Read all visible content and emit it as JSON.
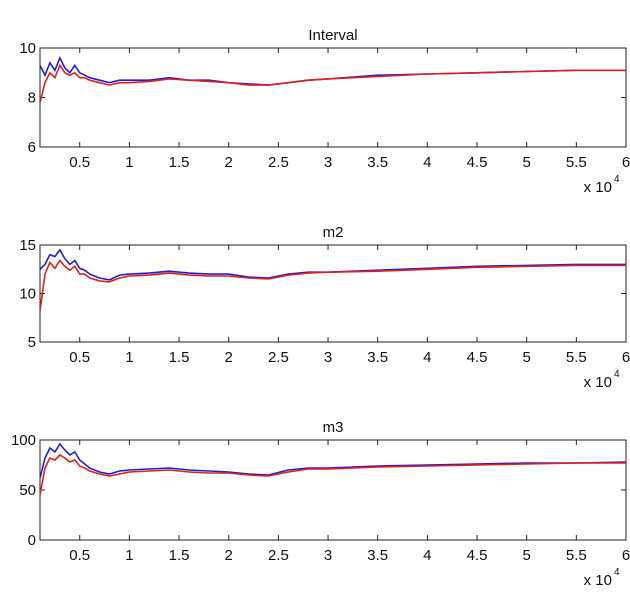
{
  "figure_bg": "#ffffff",
  "chart_data": [
    {
      "type": "line",
      "title": "Interval",
      "xlabel": "",
      "ylabel": "",
      "xlim": [
        1000,
        60000
      ],
      "ylim": [
        6,
        10
      ],
      "x_ticks": [
        5000,
        10000,
        15000,
        20000,
        25000,
        30000,
        35000,
        40000,
        45000,
        50000,
        55000,
        60000
      ],
      "x_tick_labels": [
        "0.5",
        "1",
        "1.5",
        "2",
        "2.5",
        "3",
        "3.5",
        "4",
        "4.5",
        "5",
        "5.5",
        "6"
      ],
      "x_exponent_label": {
        "base": "x 10",
        "power": "4"
      },
      "y_ticks": [
        6,
        8,
        10
      ],
      "y_tick_labels": [
        "6",
        "8",
        "10"
      ],
      "grid": false,
      "legend": "none",
      "series": [
        {
          "color": "#1f1fd6",
          "x": [
            1000,
            1500,
            2000,
            2500,
            3000,
            3500,
            4000,
            4500,
            5000,
            5500,
            6000,
            7000,
            8000,
            9000,
            10000,
            12000,
            14000,
            16000,
            18000,
            20000,
            22000,
            24000,
            26000,
            28000,
            30000,
            35000,
            40000,
            45000,
            50000,
            55000,
            60000
          ],
          "y": [
            9.3,
            8.9,
            9.4,
            9.1,
            9.6,
            9.2,
            9.0,
            9.3,
            9.0,
            8.9,
            8.8,
            8.7,
            8.6,
            8.7,
            8.7,
            8.7,
            8.8,
            8.7,
            8.7,
            8.6,
            8.55,
            8.5,
            8.6,
            8.7,
            8.75,
            8.9,
            8.95,
            9.0,
            9.05,
            9.1,
            9.1
          ]
        },
        {
          "color": "#e0201a",
          "x": [
            1000,
            1500,
            2000,
            2500,
            3000,
            3500,
            4000,
            4500,
            5000,
            5500,
            6000,
            7000,
            8000,
            9000,
            10000,
            12000,
            14000,
            16000,
            18000,
            20000,
            22000,
            24000,
            26000,
            28000,
            30000,
            35000,
            40000,
            45000,
            50000,
            55000,
            60000
          ],
          "y": [
            7.8,
            8.6,
            9.0,
            8.8,
            9.3,
            9.0,
            8.9,
            9.0,
            8.8,
            8.8,
            8.7,
            8.6,
            8.5,
            8.6,
            8.6,
            8.65,
            8.75,
            8.7,
            8.65,
            8.6,
            8.5,
            8.5,
            8.6,
            8.7,
            8.75,
            8.85,
            8.95,
            9.0,
            9.05,
            9.1,
            9.1
          ]
        }
      ]
    },
    {
      "type": "line",
      "title": "m2",
      "xlabel": "",
      "ylabel": "",
      "xlim": [
        1000,
        60000
      ],
      "ylim": [
        5,
        15
      ],
      "x_ticks": [
        5000,
        10000,
        15000,
        20000,
        25000,
        30000,
        35000,
        40000,
        45000,
        50000,
        55000,
        60000
      ],
      "x_tick_labels": [
        "0.5",
        "1",
        "1.5",
        "2",
        "2.5",
        "3",
        "3.5",
        "4",
        "4.5",
        "5",
        "5.5",
        "6"
      ],
      "x_exponent_label": {
        "base": "x 10",
        "power": "4"
      },
      "y_ticks": [
        5,
        10,
        15
      ],
      "y_tick_labels": [
        "5",
        "10",
        "15"
      ],
      "grid": false,
      "legend": "none",
      "series": [
        {
          "color": "#1f1fd6",
          "x": [
            1000,
            1500,
            2000,
            2500,
            3000,
            3500,
            4000,
            4500,
            5000,
            5500,
            6000,
            7000,
            8000,
            9000,
            10000,
            12000,
            14000,
            16000,
            18000,
            20000,
            22000,
            24000,
            26000,
            28000,
            30000,
            35000,
            40000,
            45000,
            50000,
            55000,
            60000
          ],
          "y": [
            12.5,
            13.0,
            14.0,
            13.8,
            14.5,
            13.6,
            13.0,
            13.4,
            12.6,
            12.4,
            12.0,
            11.6,
            11.4,
            11.9,
            12.0,
            12.1,
            12.3,
            12.1,
            12.0,
            12.0,
            11.7,
            11.6,
            12.0,
            12.2,
            12.2,
            12.4,
            12.6,
            12.8,
            12.9,
            13.0,
            13.0
          ]
        },
        {
          "color": "#e0201a",
          "x": [
            1000,
            1500,
            2000,
            2500,
            3000,
            3500,
            4000,
            4500,
            5000,
            5500,
            6000,
            7000,
            8000,
            9000,
            10000,
            12000,
            14000,
            16000,
            18000,
            20000,
            22000,
            24000,
            26000,
            28000,
            30000,
            35000,
            40000,
            45000,
            50000,
            55000,
            60000
          ],
          "y": [
            8.2,
            12.0,
            13.2,
            12.6,
            13.4,
            12.8,
            12.4,
            12.8,
            12.0,
            12.0,
            11.6,
            11.3,
            11.2,
            11.6,
            11.8,
            11.9,
            12.1,
            11.9,
            11.8,
            11.8,
            11.6,
            11.5,
            11.9,
            12.1,
            12.2,
            12.3,
            12.5,
            12.7,
            12.8,
            12.9,
            12.9
          ]
        }
      ]
    },
    {
      "type": "line",
      "title": "m3",
      "xlabel": "",
      "ylabel": "",
      "xlim": [
        1000,
        60000
      ],
      "ylim": [
        0,
        100
      ],
      "x_ticks": [
        5000,
        10000,
        15000,
        20000,
        25000,
        30000,
        35000,
        40000,
        45000,
        50000,
        55000,
        60000
      ],
      "x_tick_labels": [
        "0.5",
        "1",
        "1.5",
        "2",
        "2.5",
        "3",
        "3.5",
        "4",
        "4.5",
        "5",
        "5.5",
        "6"
      ],
      "x_exponent_label": {
        "base": "x 10",
        "power": "4"
      },
      "y_ticks": [
        0,
        50,
        100
      ],
      "y_tick_labels": [
        "0",
        "50",
        "100"
      ],
      "grid": false,
      "legend": "none",
      "series": [
        {
          "color": "#1f1fd6",
          "x": [
            1000,
            1500,
            2000,
            2500,
            3000,
            3500,
            4000,
            4500,
            5000,
            5500,
            6000,
            7000,
            8000,
            9000,
            10000,
            12000,
            14000,
            16000,
            18000,
            20000,
            22000,
            24000,
            26000,
            28000,
            30000,
            35000,
            40000,
            45000,
            50000,
            55000,
            60000
          ],
          "y": [
            62,
            82,
            92,
            88,
            96,
            90,
            85,
            88,
            80,
            76,
            72,
            68,
            66,
            69,
            70,
            71,
            72,
            70,
            69,
            68,
            66,
            65,
            70,
            72,
            72,
            74,
            75,
            76,
            77,
            77,
            78
          ]
        },
        {
          "color": "#e0201a",
          "x": [
            1000,
            1500,
            2000,
            2500,
            3000,
            3500,
            4000,
            4500,
            5000,
            5500,
            6000,
            7000,
            8000,
            9000,
            10000,
            12000,
            14000,
            16000,
            18000,
            20000,
            22000,
            24000,
            26000,
            28000,
            30000,
            35000,
            40000,
            45000,
            50000,
            55000,
            60000
          ],
          "y": [
            45,
            72,
            82,
            80,
            85,
            82,
            78,
            80,
            74,
            72,
            69,
            66,
            64,
            66,
            68,
            69,
            70,
            68,
            67,
            67,
            65,
            64,
            68,
            71,
            71,
            73,
            74,
            75,
            76,
            77,
            77
          ]
        }
      ]
    }
  ]
}
